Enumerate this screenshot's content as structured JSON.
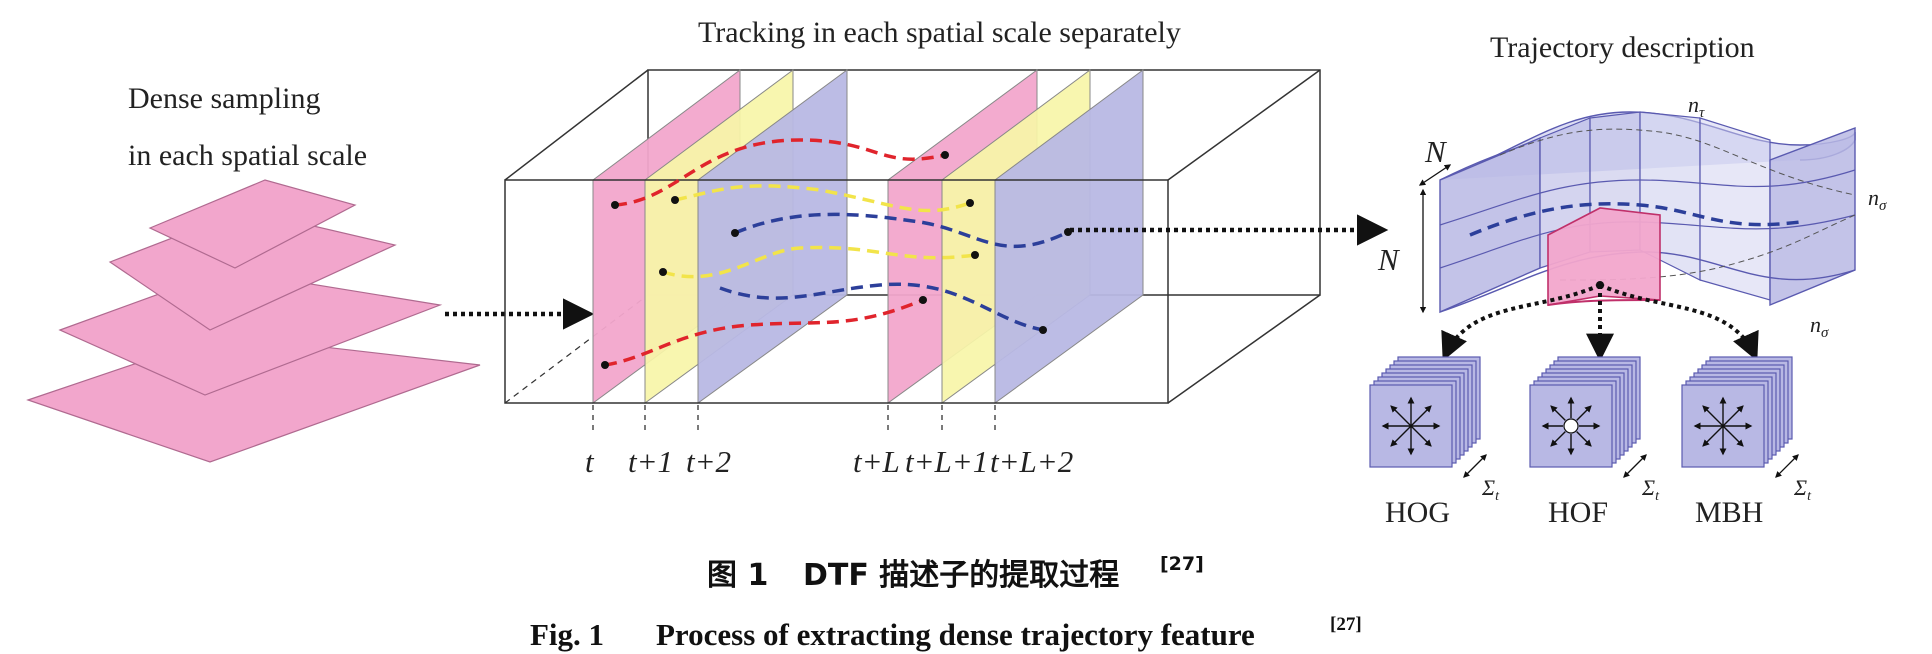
{
  "labels": {
    "dense_line1": "Dense sampling",
    "dense_line2": "in each spatial scale",
    "tracking": "Tracking in each spatial scale separately",
    "trajectory": "Trajectory description",
    "n_tau": "n",
    "n_tau_sub": "τ",
    "n_sigma": "n",
    "n_sigma_sub": "σ",
    "N": "N"
  },
  "time_ticks": [
    "t",
    "t+1",
    "t+2",
    "t+L",
    "t+L+1",
    "t+L+2"
  ],
  "descriptors": [
    "HOG",
    "HOF",
    "MBH"
  ],
  "sum_label": "Σ",
  "sum_sub": "t",
  "caption": {
    "cn_prefix": "图 1",
    "cn_text": "DTF 描述子的提取过程",
    "ref": "[27]",
    "en_prefix": "Fig. 1",
    "en_text": "Process of extracting dense trajectory feature"
  },
  "colors": {
    "pink": "#f2a6cc",
    "yellow": "#f7f5a8",
    "lavender": "#b8b8e4",
    "red": "#e0242c",
    "blue": "#2c3f9a",
    "yellowline": "#f2e44a",
    "grid": "#5a5ab0"
  }
}
